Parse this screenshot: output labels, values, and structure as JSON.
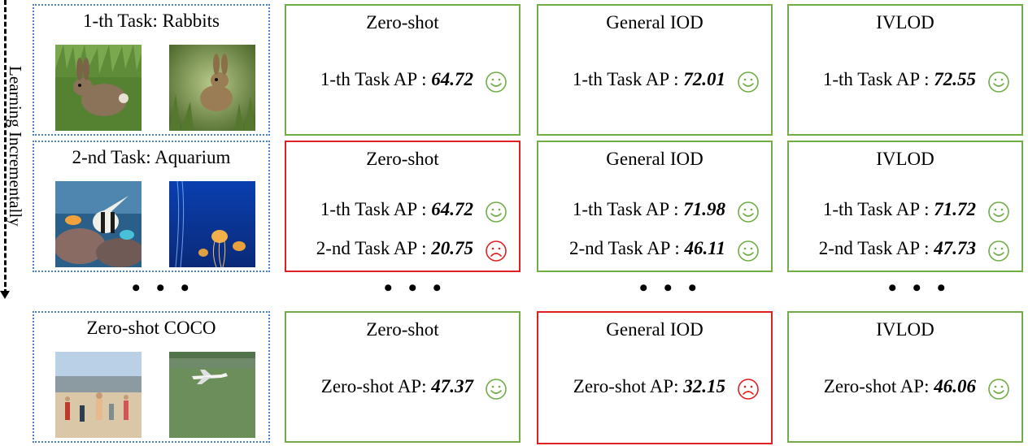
{
  "side_label": "Learning Incrementally",
  "ellipsis": "• • •",
  "colors": {
    "good": "#70ad47",
    "bad": "#e02020",
    "task_border": "#4a7fc1"
  },
  "tasks": [
    {
      "title": "1-th Task: Rabbits",
      "images": [
        "rabbit-photo",
        "rabbit-photo"
      ]
    },
    {
      "title": "2-nd Task: Aquarium",
      "images": [
        "fish-photo",
        "jellyfish-photo"
      ]
    },
    {
      "title": "Zero-shot COCO",
      "images": [
        "beach-people-photo",
        "airplane-photo"
      ]
    }
  ],
  "rows": [
    [
      {
        "title": "Zero-shot",
        "status": "good",
        "metrics": [
          {
            "label": "1-th Task AP : ",
            "value": "64.72",
            "face": "smile"
          }
        ]
      },
      {
        "title": "General IOD",
        "status": "good",
        "metrics": [
          {
            "label": "1-th Task AP : ",
            "value": "72.01",
            "face": "smile"
          }
        ]
      },
      {
        "title": "IVLOD",
        "status": "good",
        "metrics": [
          {
            "label": "1-th Task AP : ",
            "value": "72.55",
            "face": "smile"
          }
        ]
      }
    ],
    [
      {
        "title": "Zero-shot",
        "status": "bad",
        "metrics": [
          {
            "label": "1-th Task AP : ",
            "value": "64.72",
            "face": "smile"
          },
          {
            "label": "2-nd Task AP : ",
            "value": "20.75",
            "face": "frown"
          }
        ]
      },
      {
        "title": "General IOD",
        "status": "good",
        "metrics": [
          {
            "label": "1-th Task AP : ",
            "value": "71.98",
            "face": "smile"
          },
          {
            "label": "2-nd Task AP : ",
            "value": "46.11",
            "face": "smile"
          }
        ]
      },
      {
        "title": "IVLOD",
        "status": "good",
        "metrics": [
          {
            "label": "1-th Task AP : ",
            "value": "71.72",
            "face": "smile"
          },
          {
            "label": "2-nd Task AP : ",
            "value": "47.73",
            "face": "smile"
          }
        ]
      }
    ],
    [
      {
        "title": "Zero-shot",
        "status": "good",
        "metrics": [
          {
            "label": "Zero-shot AP: ",
            "value": "47.37",
            "face": "smile"
          }
        ]
      },
      {
        "title": "General IOD",
        "status": "bad",
        "metrics": [
          {
            "label": "Zero-shot AP: ",
            "value": "32.15",
            "face": "frown"
          }
        ]
      },
      {
        "title": "IVLOD",
        "status": "good",
        "metrics": [
          {
            "label": "Zero-shot AP: ",
            "value": "46.06",
            "face": "smile"
          }
        ]
      }
    ]
  ]
}
